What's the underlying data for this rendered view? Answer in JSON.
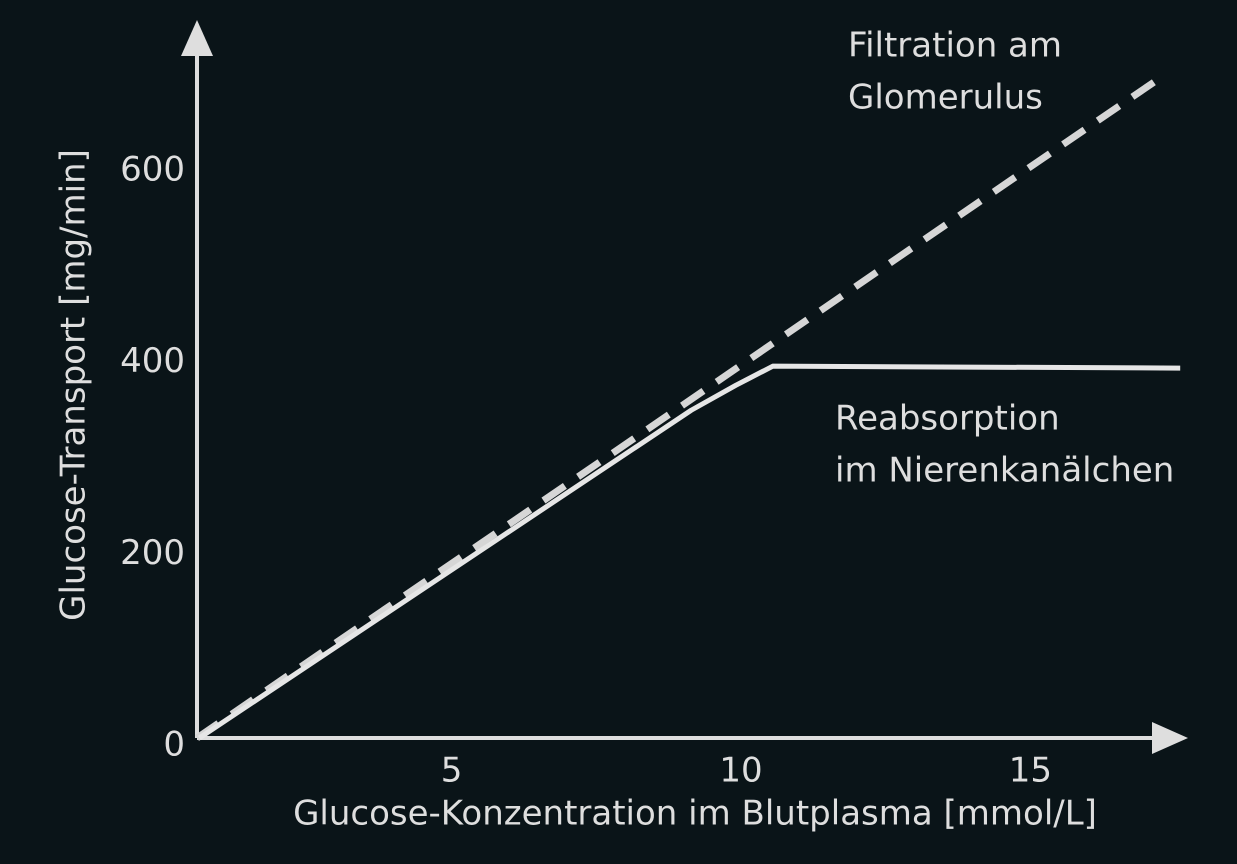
{
  "chart_data": {
    "type": "line",
    "x_label": "Glucose-Konzentration im Blutplasma [mmol/L]",
    "y_label": "Glucose-Transport [mg/min]",
    "xlim": [
      0.6,
      17.5
    ],
    "xticks": [
      5,
      10,
      15
    ],
    "ylim": [
      0,
      720
    ],
    "yticks": [
      0,
      200,
      400,
      600
    ],
    "series": [
      {
        "name": "Filtration am Glomerulus",
        "color": "#d6d6d6",
        "dashed": true,
        "x": [
          0.6,
          17.2
        ],
        "values": [
          0,
          687
        ]
      },
      {
        "name": "Reabsorption im Nierenkanälchen",
        "color": "#e6e6e6",
        "dashed": false,
        "x": [
          0.64,
          9.14,
          9.91,
          10.55,
          17.59
        ],
        "values": [
          0,
          342,
          368,
          388,
          386
        ]
      }
    ],
    "annotations": [
      {
        "lines": [
          "Filtration am",
          "Glomerulus"
        ]
      },
      {
        "lines": [
          "Reabsorption",
          "im Nierenkanälchen"
        ]
      }
    ]
  }
}
